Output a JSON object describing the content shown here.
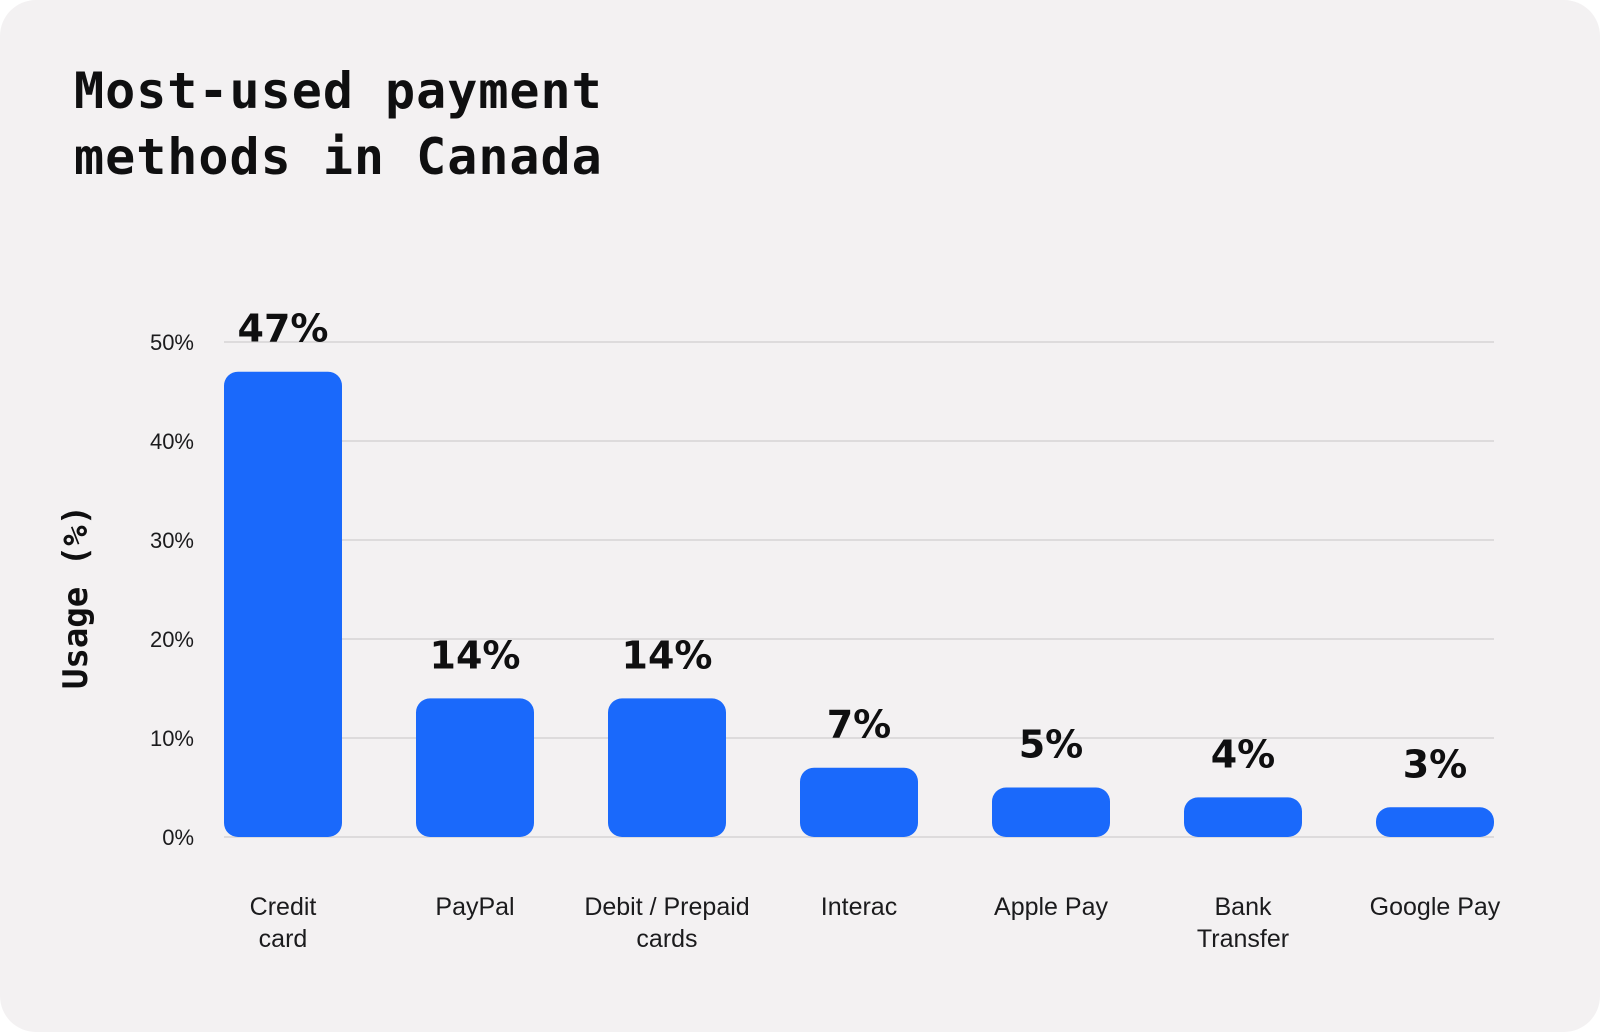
{
  "title": {
    "line1": "Most-used payment",
    "line2": "methods in Canada"
  },
  "colors": {
    "background": "#f3f1f2",
    "bar": "#1a69fb",
    "gridline": "#dddbdc",
    "text": "#0f0f10"
  },
  "chart_data": {
    "type": "bar",
    "title": "Most-used payment methods in Canada",
    "xlabel": "",
    "ylabel": "Usage (%)",
    "ylim": [
      0,
      50
    ],
    "yticks": [
      0,
      10,
      20,
      30,
      40,
      50
    ],
    "ytick_labels": [
      "0%",
      "10%",
      "20%",
      "30%",
      "40%",
      "50%"
    ],
    "grid": true,
    "categories": [
      [
        "Credit",
        "card"
      ],
      [
        "PayPal"
      ],
      [
        "Debit / Prepaid",
        "cards"
      ],
      [
        "Interac"
      ],
      [
        "Apple Pay"
      ],
      [
        "Bank",
        "Transfer"
      ],
      [
        "Google Pay"
      ]
    ],
    "values": [
      47,
      14,
      14,
      7,
      5,
      4,
      3
    ],
    "value_labels": [
      "47%",
      "14%",
      "14%",
      "7%",
      "5%",
      "4%",
      "3%"
    ]
  }
}
